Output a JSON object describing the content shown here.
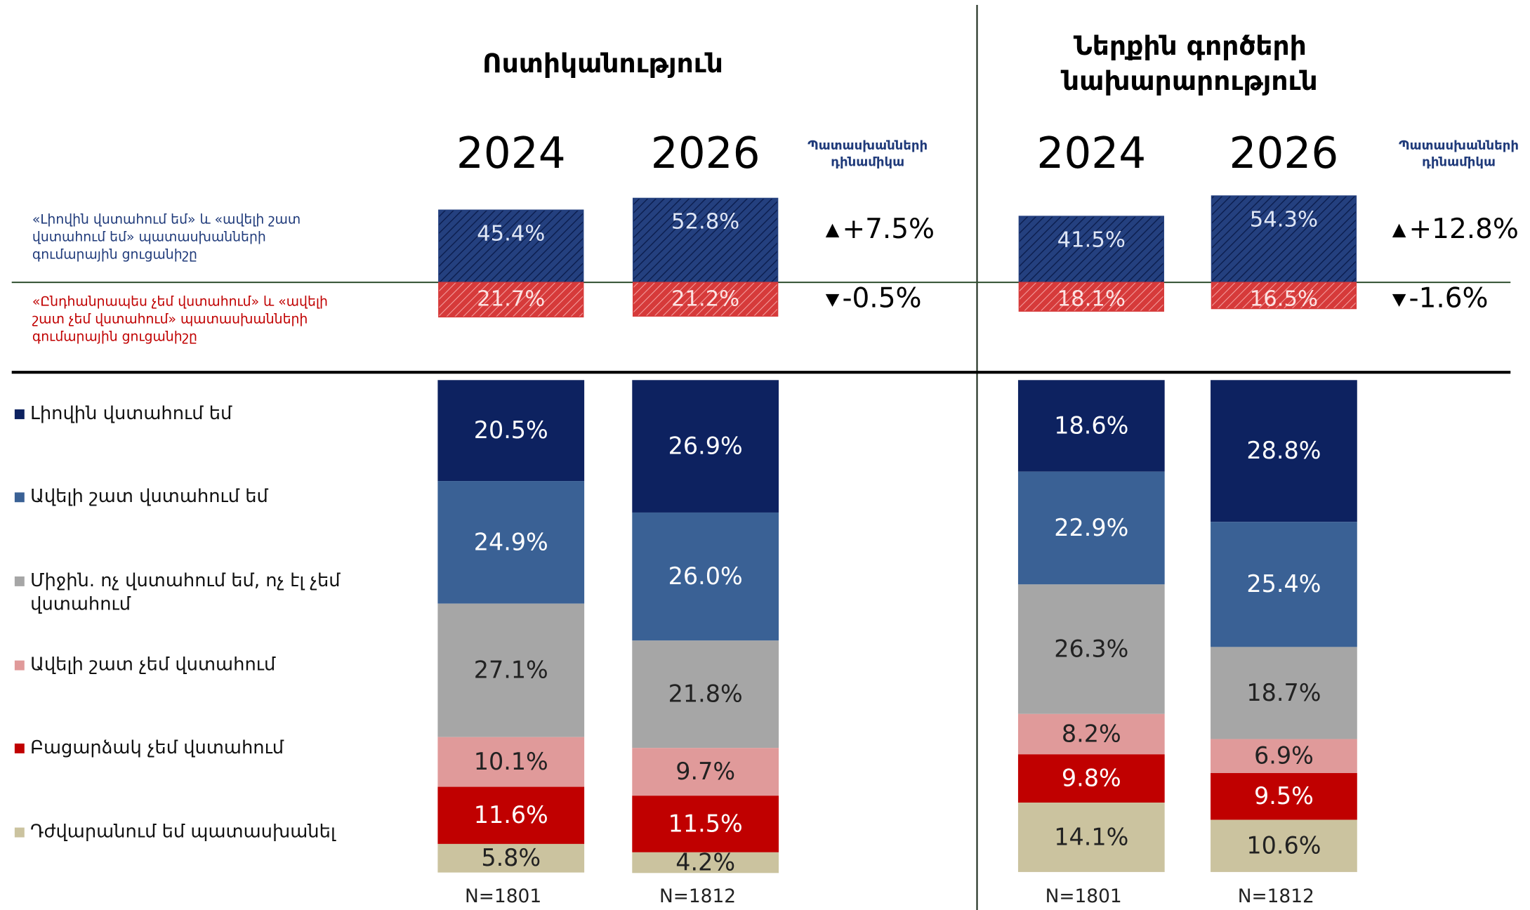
{
  "chart_data": [
    {
      "type": "bar",
      "title": "Ոստիկանություն",
      "categories": [
        "2024",
        "2026"
      ],
      "change_header": "Պատասխանների դինամիկա",
      "summary": {
        "positive": {
          "color": "#24407f",
          "values": [
            45.4,
            52.8
          ],
          "value_labels": [
            "45.4%",
            "52.8%"
          ],
          "change": 7.5,
          "change_label": "+7.5%"
        },
        "negative": {
          "color": "#d63a3a",
          "values": [
            21.7,
            21.2
          ],
          "value_labels": [
            "21.7%",
            "21.2%"
          ],
          "change": -0.5,
          "change_label": "-0.5%"
        }
      },
      "series": [
        {
          "name": "Լիովին վստահում եմ",
          "color": "#0d2260",
          "values": [
            20.5,
            26.9
          ],
          "value_labels": [
            "20.5%",
            "26.9%"
          ]
        },
        {
          "name": "Ավելի շատ վստահում եմ",
          "color": "#3a6195",
          "values": [
            24.9,
            26.0
          ],
          "value_labels": [
            "24.9%",
            "26.0%"
          ]
        },
        {
          "name": "Միջին. ոչ վստահում եմ, ոչ էլ չեմ վստահում",
          "color": "#a6a6a6",
          "values": [
            27.1,
            21.8
          ],
          "value_labels": [
            "27.1%",
            "21.8%"
          ]
        },
        {
          "name": "Ավելի շատ չեմ վստահում",
          "color": "#e09a9a",
          "values": [
            10.1,
            9.7
          ],
          "value_labels": [
            "10.1%",
            "9.7%"
          ]
        },
        {
          "name": "Բացարձակ չեմ վստահում",
          "color": "#c00000",
          "values": [
            11.6,
            11.5
          ],
          "value_labels": [
            "11.6%",
            "11.5%"
          ]
        },
        {
          "name": "Դժվարանում եմ պատասխանել",
          "color": "#cbc39f",
          "values": [
            5.8,
            4.2
          ],
          "value_labels": [
            "5.8%",
            "4.2%"
          ]
        }
      ],
      "n_labels": [
        "N=1801",
        "N=1812"
      ]
    },
    {
      "type": "bar",
      "title": "Ներքին գործերի նախարարություն",
      "categories": [
        "2024",
        "2026"
      ],
      "change_header": "Պատասխանների դինամիկա",
      "summary": {
        "positive": {
          "color": "#24407f",
          "values": [
            41.5,
            54.3
          ],
          "value_labels": [
            "41.5%",
            "54.3%"
          ],
          "change": 12.8,
          "change_label": "+12.8%"
        },
        "negative": {
          "color": "#d63a3a",
          "values": [
            18.1,
            16.5
          ],
          "value_labels": [
            "18.1%",
            "16.5%"
          ],
          "change": -1.6,
          "change_label": "-1.6%"
        }
      },
      "series": [
        {
          "color": "#0d2260",
          "values": [
            18.6,
            28.8
          ],
          "value_labels": [
            "18.6%",
            "28.8%"
          ]
        },
        {
          "color": "#3a6195",
          "values": [
            22.9,
            25.4
          ],
          "value_labels": [
            "22.9%",
            "25.4%"
          ]
        },
        {
          "color": "#a6a6a6",
          "values": [
            26.3,
            18.7
          ],
          "value_labels": [
            "26.3%",
            "18.7%"
          ]
        },
        {
          "color": "#e09a9a",
          "values": [
            8.2,
            6.9
          ],
          "value_labels": [
            "8.2%",
            "6.9%"
          ]
        },
        {
          "color": "#c00000",
          "values": [
            9.8,
            9.5
          ],
          "value_labels": [
            "9.8%",
            "9.5%"
          ]
        },
        {
          "color": "#cbc39f",
          "values": [
            14.1,
            10.6
          ],
          "value_labels": [
            "14.1%",
            "10.6%"
          ]
        }
      ],
      "n_labels": [
        "N=1801",
        "N=1812"
      ]
    }
  ],
  "summary_labels": {
    "positive": "«Լիովին վստահում եմ» և «ավելի շատ վստահում եմ» պատասխանների գումարային ցուցանիշը",
    "negative": "«Ընդհանրապես չեմ վստահում» և «ավելի շատ չեմ վստահում» պատասխանների գումարային ցուցանիշը"
  }
}
